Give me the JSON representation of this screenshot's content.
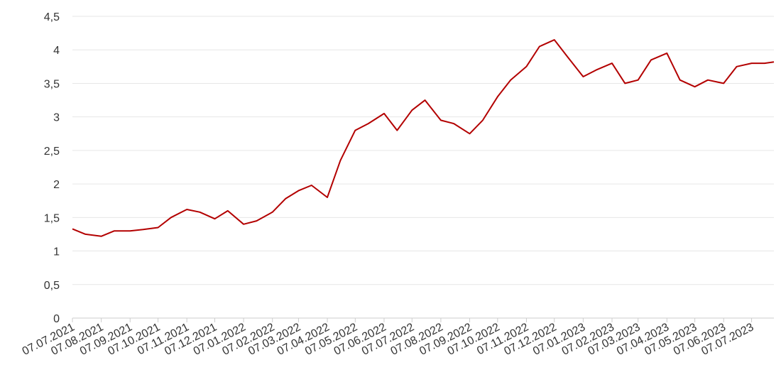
{
  "chart_data": {
    "type": "line",
    "x": [
      "2021-07-07",
      "2021-07-21",
      "2021-08-07",
      "2021-08-21",
      "2021-09-07",
      "2021-09-21",
      "2021-10-07",
      "2021-10-21",
      "2021-11-07",
      "2021-11-21",
      "2021-12-07",
      "2021-12-21",
      "2022-01-07",
      "2022-01-21",
      "2022-02-07",
      "2022-02-21",
      "2022-03-07",
      "2022-03-21",
      "2022-04-07",
      "2022-04-21",
      "2022-05-07",
      "2022-05-21",
      "2022-06-07",
      "2022-06-21",
      "2022-07-07",
      "2022-07-21",
      "2022-08-07",
      "2022-08-21",
      "2022-09-07",
      "2022-09-21",
      "2022-10-07",
      "2022-10-21",
      "2022-11-07",
      "2022-11-21",
      "2022-12-07",
      "2022-12-21",
      "2023-01-07",
      "2023-01-21",
      "2023-02-07",
      "2023-02-21",
      "2023-03-07",
      "2023-03-21",
      "2023-04-07",
      "2023-04-21",
      "2023-05-07",
      "2023-05-21",
      "2023-06-07",
      "2023-06-21",
      "2023-07-07",
      "2023-07-21",
      "2023-07-31"
    ],
    "series": [
      {
        "color": "#b30000",
        "values": [
          1.33,
          1.25,
          1.22,
          1.3,
          1.3,
          1.32,
          1.35,
          1.5,
          1.62,
          1.58,
          1.48,
          1.6,
          1.4,
          1.45,
          1.58,
          1.78,
          1.9,
          1.98,
          1.8,
          2.35,
          2.8,
          2.9,
          3.05,
          2.8,
          3.1,
          3.25,
          2.95,
          2.9,
          2.75,
          2.95,
          3.3,
          3.55,
          3.75,
          4.05,
          4.15,
          3.9,
          3.6,
          3.7,
          3.8,
          3.5,
          3.55,
          3.85,
          3.95,
          3.55,
          3.45,
          3.55,
          3.5,
          3.75,
          3.8,
          3.8,
          3.82
        ]
      }
    ],
    "xlim": [
      "2021-07-07",
      "2023-07-31"
    ],
    "xticks": [
      {
        "value": "2021-07-07",
        "label": "07.07.2021"
      },
      {
        "value": "2021-08-07",
        "label": "07.08.2021"
      },
      {
        "value": "2021-09-07",
        "label": "07.09.2021"
      },
      {
        "value": "2021-10-07",
        "label": "07.10.2021"
      },
      {
        "value": "2021-11-07",
        "label": "07.11.2021"
      },
      {
        "value": "2021-12-07",
        "label": "07.12.2021"
      },
      {
        "value": "2022-01-07",
        "label": "07.01.2022"
      },
      {
        "value": "2022-02-07",
        "label": "07.02.2022"
      },
      {
        "value": "2022-03-07",
        "label": "07.03.2022"
      },
      {
        "value": "2022-04-07",
        "label": "07.04.2022"
      },
      {
        "value": "2022-05-07",
        "label": "07.05.2022"
      },
      {
        "value": "2022-06-07",
        "label": "07.06.2022"
      },
      {
        "value": "2022-07-07",
        "label": "07.07.2022"
      },
      {
        "value": "2022-08-07",
        "label": "07.08.2022"
      },
      {
        "value": "2022-09-07",
        "label": "07.09.2022"
      },
      {
        "value": "2022-10-07",
        "label": "07.10.2022"
      },
      {
        "value": "2022-11-07",
        "label": "07.11.2022"
      },
      {
        "value": "2022-12-07",
        "label": "07.12.2022"
      },
      {
        "value": "2023-01-07",
        "label": "07.01.2023"
      },
      {
        "value": "2023-02-07",
        "label": "07.02.2023"
      },
      {
        "value": "2023-03-07",
        "label": "07.03.2023"
      },
      {
        "value": "2023-04-07",
        "label": "07.04.2023"
      },
      {
        "value": "2023-05-07",
        "label": "07.05.2023"
      },
      {
        "value": "2023-06-07",
        "label": "07.06.2023"
      },
      {
        "value": "2023-07-07",
        "label": "07.07.2023"
      }
    ],
    "ylim": [
      0,
      4.5
    ],
    "yticks": [
      0,
      {
        "value": 0.5,
        "label": "0,5"
      },
      1,
      {
        "value": 1.5,
        "label": "1,5"
      },
      2,
      {
        "value": 2.5,
        "label": "2,5"
      },
      3,
      {
        "value": 3.5,
        "label": "3,5"
      },
      4,
      {
        "value": 4.5,
        "label": "4,5"
      }
    ],
    "grid": true
  }
}
